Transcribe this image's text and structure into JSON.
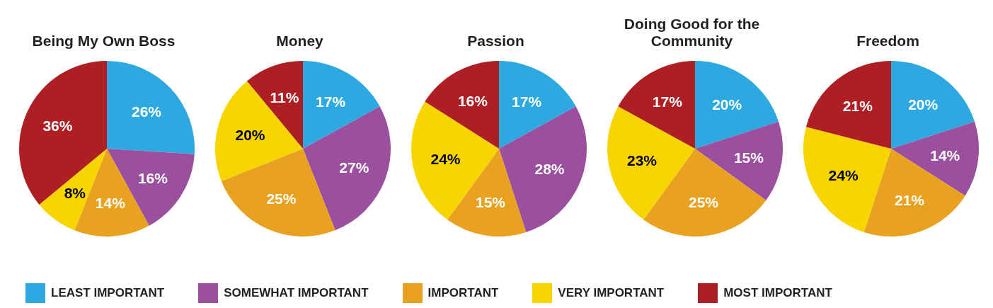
{
  "chart_data": [
    {
      "type": "pie",
      "title": "Being My Own Boss",
      "categories": [
        "LEAST IMPORTANT",
        "SOMEWHAT IMPORTANT",
        "IMPORTANT",
        "VERY IMPORTANT",
        "MOST IMPORTANT"
      ],
      "values": [
        26,
        16,
        14,
        8,
        36
      ],
      "value_labels": [
        "26%",
        "16%",
        "14%",
        "8%",
        "36%"
      ],
      "colors": [
        "#2ea8e0",
        "#9b4f9f",
        "#e8a220",
        "#f9d500",
        "#ae1f24"
      ],
      "legend": "bottom"
    },
    {
      "type": "pie",
      "title": "Money",
      "values": [
        17,
        27,
        25,
        20,
        11
      ],
      "value_labels": [
        "17%",
        "27%",
        "25%",
        "20%",
        "11%"
      ],
      "colors": [
        "#2ea8e0",
        "#9b4f9f",
        "#e8a220",
        "#f9d500",
        "#ae1f24"
      ]
    },
    {
      "type": "pie",
      "title": "Passion",
      "values": [
        17,
        28,
        15,
        24,
        16
      ],
      "value_labels": [
        "17%",
        "28%",
        "15%",
        "24%",
        "16%"
      ],
      "colors": [
        "#2ea8e0",
        "#9b4f9f",
        "#e8a220",
        "#f9d500",
        "#ae1f24"
      ]
    },
    {
      "type": "pie",
      "title": "Doing Good for the Community",
      "values": [
        20,
        15,
        25,
        23,
        17
      ],
      "value_labels": [
        "20%",
        "15%",
        "25%",
        "23%",
        "17%"
      ],
      "colors": [
        "#2ea8e0",
        "#9b4f9f",
        "#e8a220",
        "#f9d500",
        "#ae1f24"
      ]
    },
    {
      "type": "pie",
      "title": "Freedom",
      "values": [
        20,
        14,
        21,
        24,
        21
      ],
      "value_labels": [
        "20%",
        "14%",
        "21%",
        "24%",
        "21%"
      ],
      "colors": [
        "#2ea8e0",
        "#9b4f9f",
        "#e8a220",
        "#f9d500",
        "#ae1f24"
      ]
    }
  ]
}
